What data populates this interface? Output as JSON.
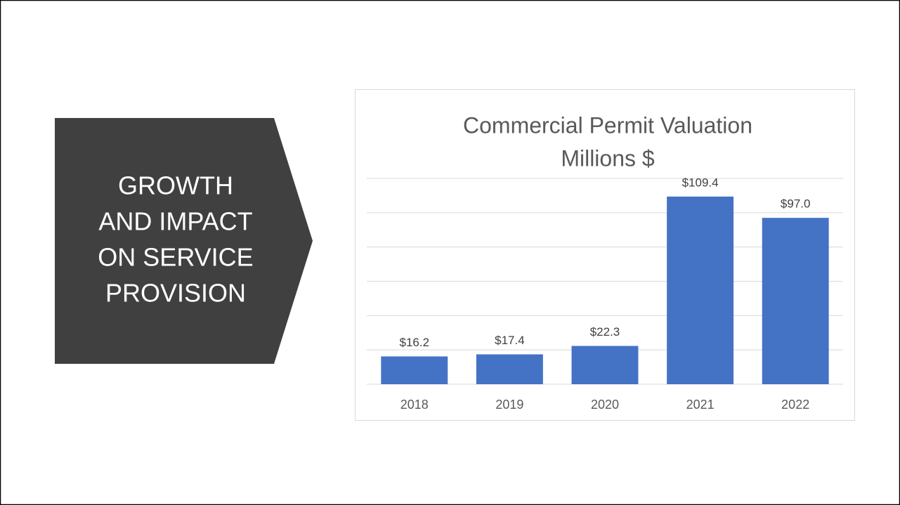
{
  "heading": [
    "GROWTH",
    "AND IMPACT",
    "ON SERVICE",
    "PROVISION"
  ],
  "chart_data": {
    "type": "bar",
    "title": "Commercial Permit Valuation",
    "subtitle": "Millions $",
    "categories": [
      "2018",
      "2019",
      "2020",
      "2021",
      "2022"
    ],
    "values": [
      16.2,
      17.4,
      22.3,
      109.4,
      97.0
    ],
    "value_labels": [
      "$16.2",
      "$17.4",
      "$22.3",
      "$109.4",
      "$97.0"
    ],
    "color": "#4472c4",
    "ylim": [
      0,
      120
    ],
    "yticks": [
      0,
      20,
      40,
      60,
      80,
      100,
      120
    ],
    "grid": true
  }
}
